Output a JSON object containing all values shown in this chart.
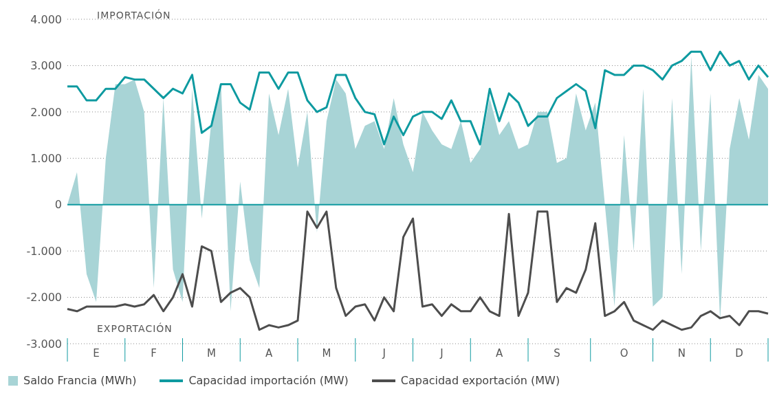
{
  "chart_data": {
    "type": "line",
    "annotations": [
      "IMPORTACIÓN",
      "EXPORTACIÓN"
    ],
    "categories": [
      null,
      null,
      null,
      "E",
      null,
      null,
      null,
      null,
      null,
      "F",
      null,
      null,
      null,
      null,
      null,
      "M",
      null,
      null,
      null,
      null,
      null,
      "A",
      null,
      null,
      null,
      null,
      null,
      "M",
      null,
      null,
      null,
      null,
      null,
      "J",
      null,
      null,
      null,
      null,
      null,
      "J",
      null,
      null,
      null,
      null,
      null,
      "A",
      null,
      null,
      null,
      null,
      null,
      "S",
      null,
      null,
      null,
      null,
      null,
      null,
      "O",
      null,
      null,
      null,
      null,
      null,
      "N",
      null,
      null,
      null,
      null,
      null,
      "D",
      null,
      null,
      null
    ],
    "ylim": [
      -3000,
      4000
    ],
    "yticks": [
      {
        "value": -3000,
        "label": "-3.000"
      },
      {
        "value": -2000,
        "label": "-2.000"
      },
      {
        "value": -1000,
        "label": "-1.000"
      },
      0,
      {
        "value": 1000,
        "label": "1.000"
      },
      {
        "value": 2000,
        "label": "2.000"
      },
      {
        "value": 3000,
        "label": "3.000"
      },
      {
        "value": 4000,
        "label": "4.000"
      }
    ],
    "grid": "y",
    "legend": "bottom",
    "line_style": "solid",
    "ref_lines": [
      {
        "axis": "y",
        "value": 0,
        "color": "#0e9aa0"
      }
    ],
    "series": [
      {
        "type": "area",
        "name": "Saldo Francia (MWh)",
        "color": "#a8d4d6",
        "values": [
          0,
          700,
          -1500,
          -2100,
          1000,
          2600,
          2600,
          2700,
          2000,
          -1800,
          2300,
          -1400,
          -2100,
          2500,
          -300,
          1800,
          2600,
          -2300,
          500,
          -1200,
          -1800,
          2400,
          1500,
          2500,
          800,
          2000,
          -600,
          1800,
          2700,
          2400,
          1200,
          1700,
          1800,
          1200,
          2300,
          1300,
          700,
          2000,
          1600,
          1300,
          1200,
          1800,
          900,
          1200,
          2300,
          1500,
          1800,
          1200,
          1300,
          2000,
          2000,
          900,
          1000,
          2400,
          1600,
          2200,
          0,
          -2200,
          1500,
          -1000,
          2500,
          -2200,
          -2000,
          2300,
          -1500,
          3200,
          -1000,
          2400,
          -2500,
          1200,
          2300,
          1400,
          2800,
          2500
        ]
      },
      {
        "name": "Capacidad importación (MW)",
        "color": "#0e9aa0",
        "values": [
          2550,
          2550,
          2250,
          2250,
          2500,
          2500,
          2750,
          2700,
          2700,
          2500,
          2300,
          2500,
          2400,
          2800,
          1550,
          1700,
          2600,
          2600,
          2200,
          2050,
          2850,
          2850,
          2500,
          2850,
          2850,
          2250,
          2000,
          2100,
          2800,
          2800,
          2300,
          2000,
          1950,
          1300,
          1900,
          1500,
          1900,
          2000,
          2000,
          1850,
          2250,
          1800,
          1800,
          1300,
          2500,
          1800,
          2400,
          2200,
          1700,
          1900,
          1900,
          2300,
          2450,
          2600,
          2450,
          1650,
          2900,
          2800,
          2800,
          3000,
          3000,
          2900,
          2700,
          3000,
          3100,
          3300,
          3300,
          2900,
          3300,
          3000,
          3100,
          2700,
          3000,
          2750
        ]
      },
      {
        "name": "Capacidad exportación (MW)",
        "color": "#4d4d4d",
        "values": [
          -2250,
          -2300,
          -2200,
          -2200,
          -2200,
          -2200,
          -2150,
          -2200,
          -2150,
          -1950,
          -2300,
          -2000,
          -1500,
          -2200,
          -900,
          -1000,
          -2100,
          -1900,
          -1800,
          -2000,
          -2700,
          -2600,
          -2650,
          -2600,
          -2500,
          -150,
          -500,
          -150,
          -1800,
          -2400,
          -2200,
          -2150,
          -2500,
          -2000,
          -2300,
          -700,
          -300,
          -2200,
          -2150,
          -2400,
          -2150,
          -2300,
          -2300,
          -2000,
          -2300,
          -2400,
          -200,
          -2400,
          -1900,
          -150,
          -150,
          -2100,
          -1800,
          -1900,
          -1400,
          -400,
          -2400,
          -2300,
          -2100,
          -2500,
          -2600,
          -2700,
          -2500,
          -2600,
          -2700,
          -2650,
          -2400,
          -2300,
          -2450,
          -2400,
          -2600,
          -2300,
          -2300,
          -2350
        ]
      }
    ]
  }
}
